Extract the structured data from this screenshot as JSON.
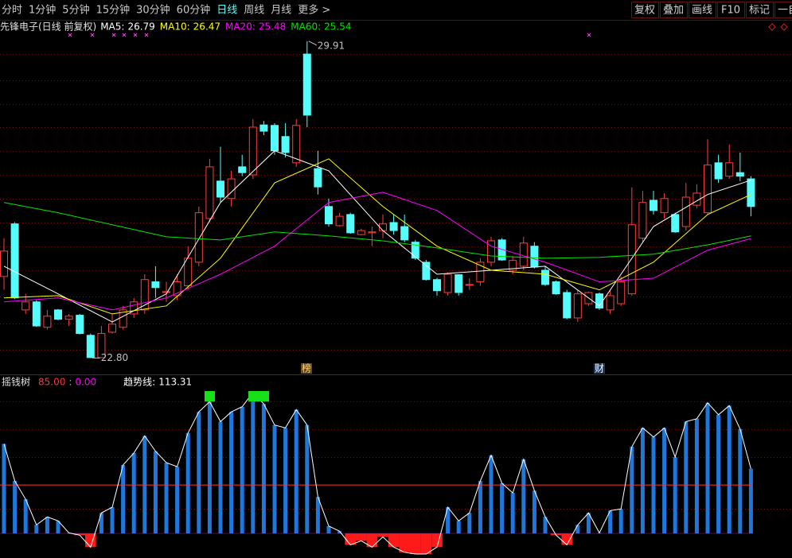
{
  "toolbar": {
    "tabs": [
      "分时",
      "1分钟",
      "5分钟",
      "15分钟",
      "30分钟",
      "60分钟",
      "日线",
      "周线",
      "月线",
      "更多 >"
    ],
    "active_tab": 6,
    "buttons": [
      "复权",
      "叠加",
      "画线",
      "F10",
      "标记",
      "一自"
    ]
  },
  "chart_data": [
    {
      "type": "candlestick",
      "title": "先锋电子(日线 前复权)",
      "ylim": [
        22.54,
        30.12
      ],
      "up_color": "#ff3c3c",
      "down_color": "#54fcfc",
      "open": [
        24.63,
        25.81,
        23.88,
        24.06,
        23.49,
        23.88,
        23.67,
        23.76,
        23.31,
        22.81,
        23.38,
        23.49,
        23.79,
        23.88,
        24.51,
        24.27,
        24.2,
        24.42,
        24.95,
        25.93,
        26.77,
        26.38,
        27.09,
        26.91,
        28.03,
        28.02,
        27.77,
        27.18,
        29.62,
        27.05,
        26.2,
        25.77,
        26.02,
        25.57,
        25.61,
        25.66,
        25.84,
        25.75,
        25.4,
        24.95,
        24.56,
        24.27,
        24.67,
        24.44,
        24.51,
        24.95,
        25.45,
        24.77,
        24.86,
        25.31,
        24.77,
        24.51,
        24.27,
        23.7,
        24.02,
        24.24,
        23.88,
        24.02,
        24.24,
        25.49,
        26.34,
        26.06,
        26.02,
        25.75,
        26.23,
        26.06,
        27.18,
        26.88,
        26.96,
        26.82
      ],
      "high": [
        25.49,
        25.85,
        24.24,
        24.1,
        23.88,
        23.9,
        23.79,
        23.79,
        23.35,
        23.52,
        23.79,
        23.97,
        24.15,
        24.68,
        24.86,
        24.51,
        24.68,
        25.31,
        26.2,
        27.27,
        27.54,
        27.0,
        27.36,
        28.16,
        28.12,
        28.07,
        28.07,
        28.16,
        29.91,
        27.45,
        26.38,
        26.06,
        26.06,
        25.7,
        25.75,
        26.02,
        26.02,
        26.02,
        25.45,
        25.0,
        24.6,
        24.72,
        24.68,
        24.59,
        25.04,
        25.52,
        25.49,
        25.09,
        25.52,
        25.4,
        24.86,
        24.54,
        24.33,
        24.33,
        24.29,
        24.27,
        24.33,
        24.63,
        26.63,
        26.55,
        26.55,
        26.5,
        26.06,
        26.73,
        26.7,
        27.71,
        27.36,
        27.59,
        27.41,
        26.88
      ],
      "low": [
        24.33,
        24.12,
        23.79,
        23.5,
        23.44,
        23.65,
        23.52,
        23.33,
        22.8,
        22.8,
        23.35,
        23.44,
        23.7,
        23.79,
        24.15,
        24.06,
        24.1,
        24.33,
        24.86,
        25.85,
        26.29,
        26.2,
        26.88,
        26.82,
        27.8,
        27.36,
        27.3,
        27.09,
        27.98,
        26.47,
        25.75,
        25.75,
        25.59,
        25.55,
        25.31,
        25.49,
        25.57,
        25.4,
        25.0,
        24.54,
        24.2,
        24.2,
        24.2,
        24.33,
        24.42,
        24.86,
        24.98,
        24.68,
        24.77,
        24.81,
        24.42,
        24.22,
        23.67,
        23.61,
        23.97,
        23.88,
        23.79,
        23.97,
        24.2,
        25.4,
        26.02,
        25.93,
        25.61,
        25.66,
        26.16,
        26.02,
        26.73,
        26.82,
        26.77,
        25.98
      ],
      "close": [
        25.2,
        24.15,
        24.06,
        23.52,
        23.74,
        23.67,
        23.74,
        23.35,
        22.81,
        23.35,
        23.56,
        23.88,
        24.06,
        24.56,
        24.38,
        24.29,
        24.51,
        25.04,
        26.06,
        27.09,
        26.41,
        26.82,
        26.96,
        27.98,
        27.89,
        27.45,
        27.41,
        28.02,
        28.25,
        26.64,
        25.81,
        25.98,
        25.61,
        25.66,
        25.63,
        25.81,
        25.66,
        25.45,
        25.04,
        24.56,
        24.31,
        24.68,
        24.27,
        24.45,
        24.95,
        25.43,
        25.0,
        24.99,
        25.38,
        24.84,
        24.45,
        24.24,
        23.7,
        24.24,
        24.27,
        23.92,
        24.2,
        24.51,
        25.79,
        26.29,
        26.11,
        26.38,
        25.63,
        26.41,
        26.5,
        27.13,
        26.82,
        27.18,
        26.88,
        26.2
      ],
      "max_label": 29.91,
      "min_label": {
        "value": 22.8,
        "label": "22.80"
      },
      "events": [
        "榜",
        "财"
      ],
      "series": [
        {
          "name": "MA5:",
          "color": "#ffffff",
          "x": [
            0,
            5,
            10,
            15,
            20,
            25,
            30,
            35,
            40,
            45,
            50,
            55,
            60,
            65,
            69
          ],
          "values": [
            24.86,
            24.24,
            23.61,
            24.24,
            26.29,
            27.45,
            27.0,
            25.66,
            24.68,
            24.77,
            24.86,
            23.97,
            25.75,
            26.47,
            26.79
          ]
        },
        {
          "name": "MA10:",
          "color": "#ffff00",
          "x": [
            0,
            5,
            10,
            15,
            20,
            25,
            30,
            35,
            40,
            45,
            50,
            55,
            60,
            65,
            69
          ],
          "values": [
            24.15,
            24.2,
            23.79,
            23.97,
            25.04,
            26.73,
            27.27,
            26.2,
            25.31,
            24.77,
            24.68,
            24.33,
            24.95,
            26.02,
            26.47
          ]
        },
        {
          "name": "MA20:",
          "color": "#ff00ff",
          "x": [
            0,
            5,
            10,
            15,
            20,
            25,
            30,
            35,
            40,
            45,
            50,
            55,
            60,
            65,
            69
          ],
          "values": [
            24.06,
            24.15,
            23.88,
            24.15,
            24.68,
            25.31,
            26.29,
            26.52,
            26.11,
            25.31,
            24.95,
            24.51,
            24.59,
            25.22,
            25.48
          ]
        },
        {
          "name": "MA60:",
          "color": "#00e600",
          "x": [
            0,
            5,
            10,
            15,
            20,
            25,
            30,
            35,
            40,
            45,
            50,
            55,
            60,
            65,
            69
          ],
          "values": [
            26.29,
            26.06,
            25.79,
            25.52,
            25.45,
            25.63,
            25.54,
            25.43,
            25.27,
            25.09,
            25.04,
            25.06,
            25.13,
            25.34,
            25.54
          ]
        }
      ]
    },
    {
      "type": "bar",
      "title": "摇钱树",
      "ylim": [
        -43,
        269
      ],
      "color": "#1e78dc",
      "negative_color": "#ff1a1a",
      "line_color": "#ffffff",
      "ref_lines": [
        {
          "value": 85,
          "label": "85.00",
          "color": "#ff3232"
        },
        {
          "value": 0,
          "label": "0.00",
          "color": "#ff00ff"
        }
      ],
      "separator": ":",
      "series_name": "趋势线:",
      "values": [
        157,
        92,
        60,
        15,
        29,
        22,
        1,
        -3,
        -24,
        36,
        46,
        120,
        141,
        171,
        144,
        124,
        117,
        176,
        213,
        231,
        196,
        213,
        222,
        247,
        227,
        190,
        185,
        217,
        190,
        64,
        13,
        4,
        -20,
        -13,
        -24,
        -6,
        -24,
        -33,
        -36,
        -36,
        -24,
        46,
        22,
        36,
        92,
        137,
        88,
        71,
        130,
        75,
        29,
        -3,
        -20,
        15,
        36,
        1,
        40,
        43,
        152,
        185,
        169,
        185,
        134,
        196,
        201,
        229,
        208,
        224,
        183,
        113.31
      ]
    }
  ]
}
